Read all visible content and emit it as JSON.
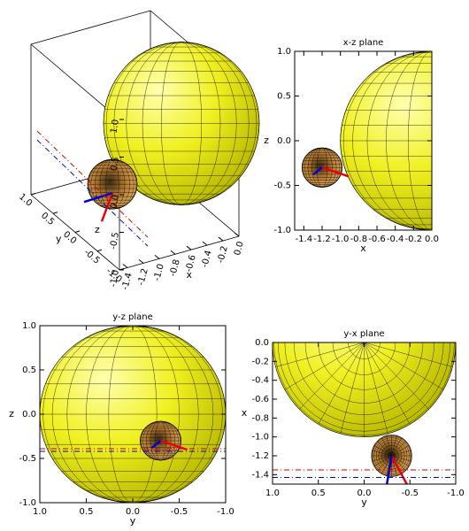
{
  "chart_data": [
    {
      "type": "surface3d",
      "xlabel": "x",
      "ylabel": "y",
      "zlabel": "z",
      "xlim": [
        -1.5,
        0
      ],
      "xticks": [
        -1.4,
        -1.2,
        {
          "value": -1,
          "label": "-1.0"
        },
        -0.8,
        -0.6,
        -0.4,
        -0.2,
        {
          "value": 0,
          "label": "0.0"
        }
      ],
      "ylim": [
        -1,
        1
      ],
      "yticks": [
        {
          "value": 1,
          "label": "1.0"
        },
        0.5,
        {
          "value": 0,
          "label": "0.0"
        },
        -0.5,
        {
          "value": -1,
          "label": "-1.0"
        }
      ],
      "zlim": [
        -1,
        1
      ],
      "zticks": [
        {
          "value": 1,
          "label": "1.0"
        },
        0.5,
        {
          "value": 0,
          "label": "0.0"
        },
        -0.5,
        {
          "value": -1,
          "label": "-1.0"
        }
      ]
    },
    {
      "type": "surface2d",
      "title": "x-z plane",
      "xlabel": "x",
      "ylabel": "z",
      "xlim": [
        -1.5,
        0
      ],
      "xticks": [
        -1.4,
        -1.2,
        {
          "value": -1,
          "label": "-1.0"
        },
        -0.8,
        -0.6,
        -0.4,
        -0.2,
        {
          "value": 0,
          "label": "0.0"
        }
      ],
      "ylim": [
        -1,
        1
      ],
      "yticks": [
        {
          "value": 1,
          "label": "1.0"
        },
        0.5,
        {
          "value": 0,
          "label": "0.0"
        },
        -0.5,
        {
          "value": -1,
          "label": "-1.0"
        }
      ]
    },
    {
      "type": "surface2d",
      "title": "y-z plane",
      "xlabel": "y",
      "ylabel": "z",
      "xlim": [
        1,
        -1
      ],
      "xticks": [
        {
          "value": 1,
          "label": "1.0"
        },
        0.5,
        {
          "value": 0,
          "label": "0.0"
        },
        -0.5,
        {
          "value": -1,
          "label": "-1.0"
        }
      ],
      "ylim": [
        -1,
        1
      ],
      "yticks": [
        {
          "value": 1,
          "label": "1.0"
        },
        0.5,
        {
          "value": 0,
          "label": "0.0"
        },
        -0.5,
        {
          "value": -1,
          "label": "-1.0"
        }
      ]
    },
    {
      "type": "surface2d",
      "title": "y-x plane",
      "xlabel": "y",
      "ylabel": "x",
      "xlim": [
        1,
        -1
      ],
      "xticks": [
        {
          "value": 1,
          "label": "1.0"
        },
        0.5,
        {
          "value": 0,
          "label": "0.0"
        },
        -0.5,
        {
          "value": -1,
          "label": "-1.0"
        }
      ],
      "ylim": [
        -1.5,
        0
      ],
      "yticks": [
        {
          "value": 0,
          "label": "0.0"
        },
        -0.2,
        -0.4,
        -0.6,
        -0.8,
        {
          "value": -1,
          "label": "-1.0"
        },
        -1.2,
        -1.4
      ]
    }
  ]
}
